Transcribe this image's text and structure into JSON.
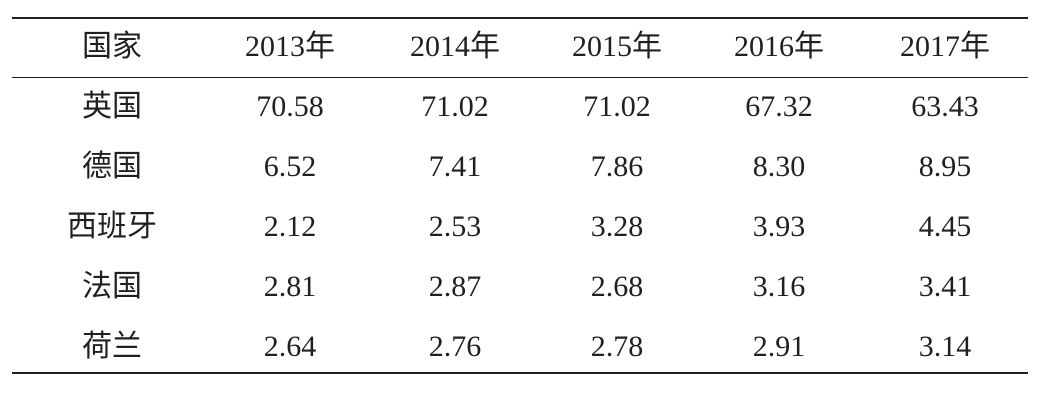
{
  "table": {
    "header": [
      "国家",
      "2013年",
      "2014年",
      "2015年",
      "2016年",
      "2017年"
    ],
    "rows": [
      [
        "英国",
        "70.58",
        "71.02",
        "71.02",
        "67.32",
        "63.43"
      ],
      [
        "德国",
        "6.52",
        "7.41",
        "7.86",
        "8.30",
        "8.95"
      ],
      [
        "西班牙",
        "2.12",
        "2.53",
        "3.28",
        "3.93",
        "4.45"
      ],
      [
        "法国",
        "2.81",
        "2.87",
        "2.68",
        "3.16",
        "3.41"
      ],
      [
        "荷兰",
        "2.64",
        "2.76",
        "2.78",
        "2.91",
        "3.14"
      ]
    ]
  }
}
